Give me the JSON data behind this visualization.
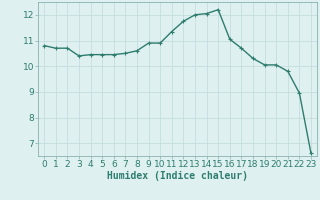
{
  "x": [
    0,
    1,
    2,
    3,
    4,
    5,
    6,
    7,
    8,
    9,
    10,
    11,
    12,
    13,
    14,
    15,
    16,
    17,
    18,
    19,
    20,
    21,
    22,
    23
  ],
  "y": [
    10.8,
    10.7,
    10.7,
    10.4,
    10.45,
    10.45,
    10.45,
    10.5,
    10.6,
    10.9,
    10.9,
    11.35,
    11.75,
    12.0,
    12.05,
    12.2,
    11.05,
    10.7,
    10.3,
    10.05,
    10.05,
    9.8,
    8.95,
    6.6
  ],
  "line_color": "#2e7d6e",
  "marker": "+",
  "marker_size": 3,
  "background_color": "#dff0f0",
  "grid_color": "#c0dada",
  "xlabel": "Humidex (Indice chaleur)",
  "xlim": [
    -0.5,
    23.5
  ],
  "ylim": [
    6.5,
    12.5
  ],
  "yticks": [
    7,
    8,
    9,
    10,
    11,
    12
  ],
  "xlabel_fontsize": 7,
  "tick_fontsize": 6.5,
  "line_width": 1.0
}
